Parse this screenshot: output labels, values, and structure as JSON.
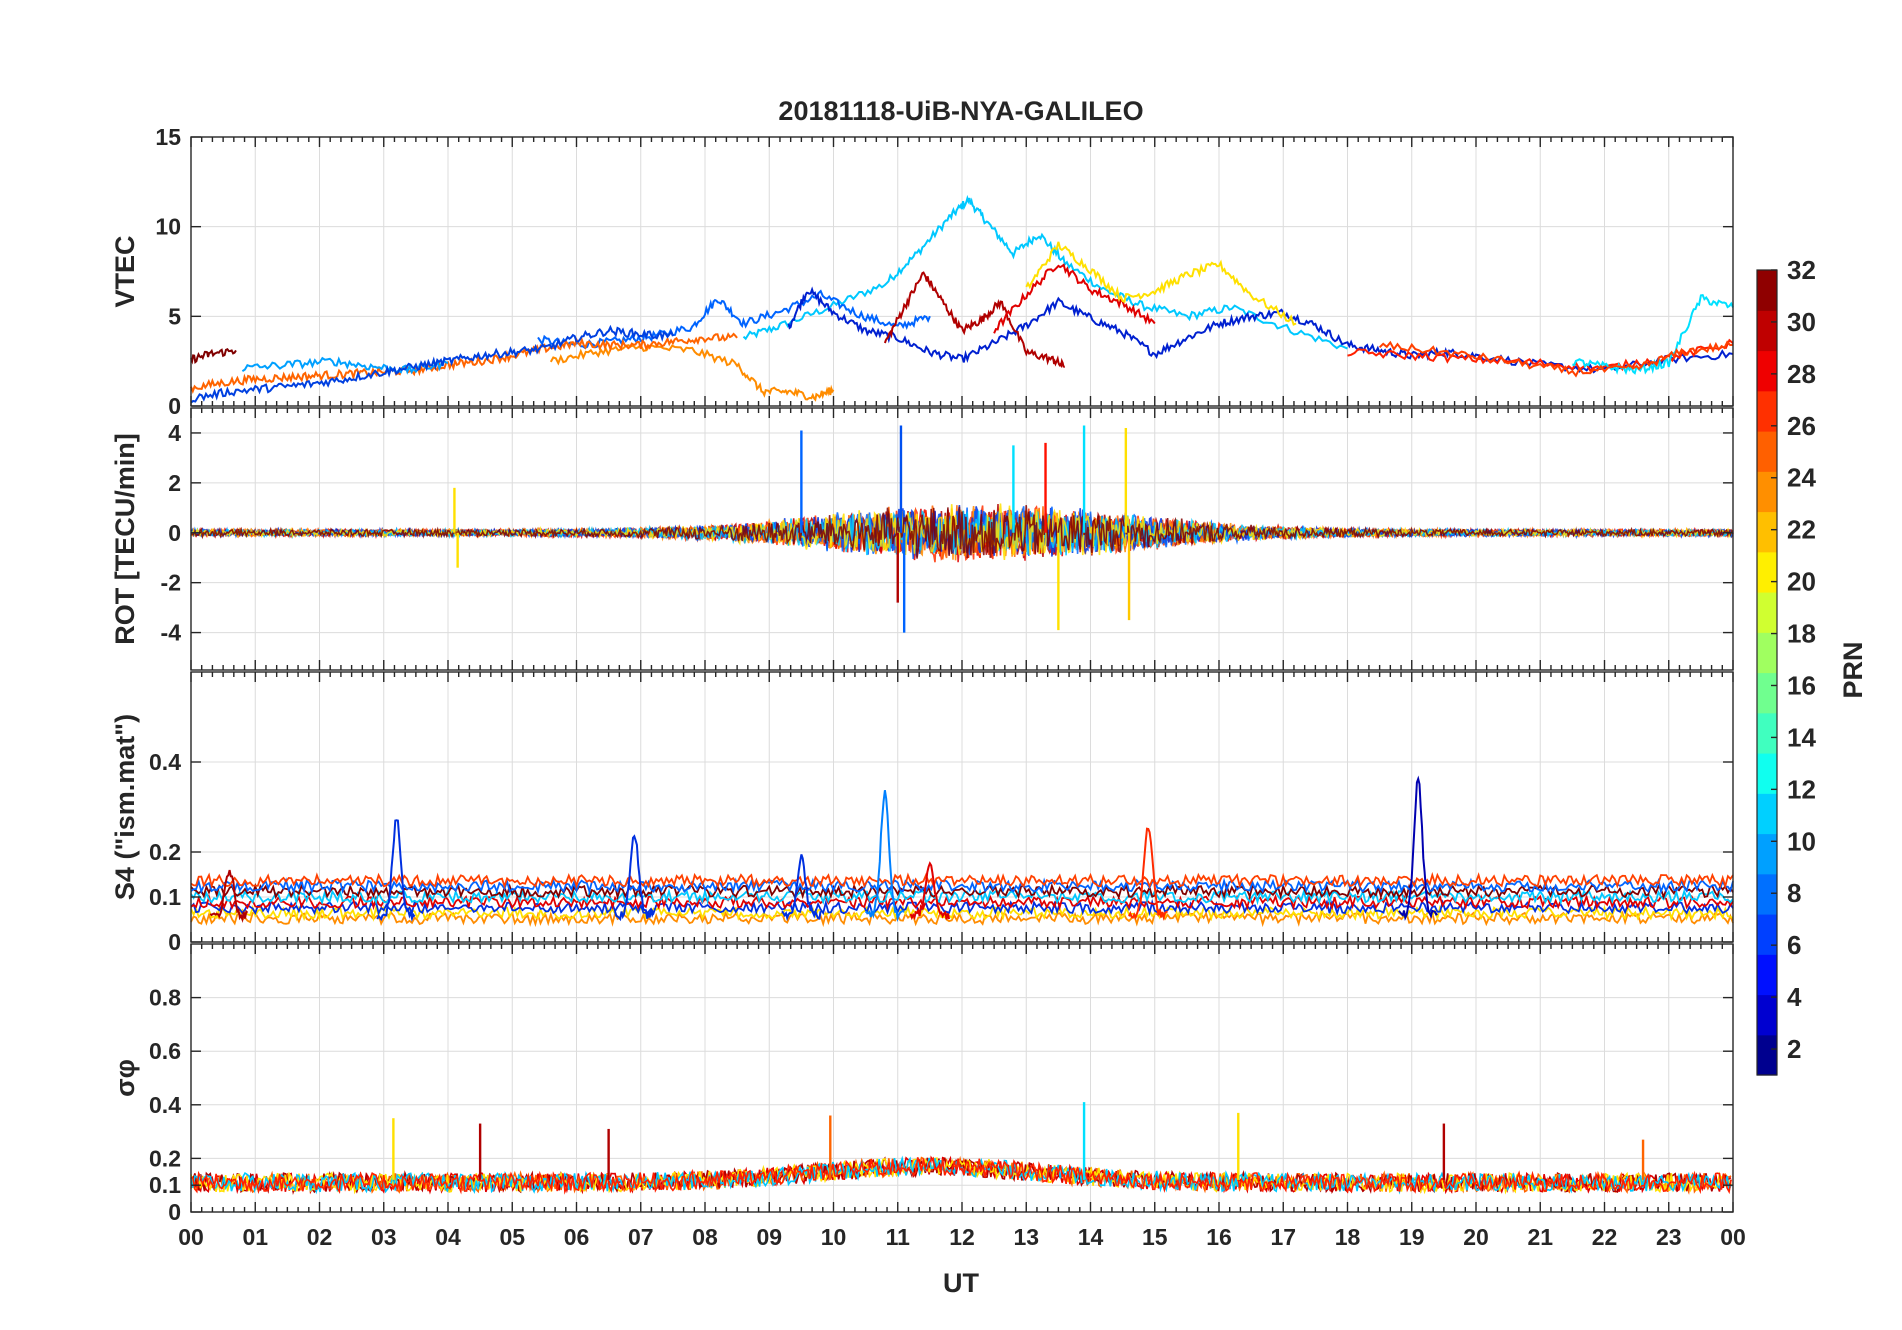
{
  "chart_data": {
    "type": "line",
    "title": "20181118-UiB-NYA-GALILEO",
    "xlabel": "UT",
    "x_ticks": [
      "00",
      "01",
      "02",
      "03",
      "04",
      "05",
      "06",
      "07",
      "08",
      "09",
      "10",
      "11",
      "12",
      "13",
      "14",
      "15",
      "16",
      "17",
      "18",
      "19",
      "20",
      "21",
      "22",
      "23",
      "00"
    ],
    "xlim": [
      0,
      24
    ],
    "colorbar": {
      "label": "PRN",
      "range": [
        1,
        32
      ],
      "ticks": [
        "2",
        "4",
        "6",
        "8",
        "10",
        "12",
        "14",
        "16",
        "18",
        "20",
        "22",
        "24",
        "26",
        "28",
        "30",
        "32"
      ],
      "colormap": "jet"
    },
    "panels": [
      {
        "id": "vtec",
        "ylabel": "VTEC",
        "ylim": [
          0,
          15
        ],
        "yticks": [
          "0",
          "5",
          "10",
          "15"
        ],
        "ytick_values": [
          0,
          5,
          10,
          15
        ],
        "series": [
          {
            "prn": 10,
            "color": "#00c8ff",
            "x": [
              8.6,
              9.2,
              10,
              10.8,
              11.3,
              11.8,
              12.1,
              12.4,
              12.8,
              13.2,
              13.6,
              14.2,
              14.8,
              15.5,
              16.2,
              17,
              18
            ],
            "y": [
              3.8,
              4.5,
              5.6,
              6.8,
              8.5,
              10.5,
              11.5,
              10.2,
              8.5,
              9.6,
              8.0,
              6.5,
              5.6,
              5.0,
              5.5,
              4.4,
              3.2
            ]
          },
          {
            "prn": 7,
            "color": "#0064ff",
            "x": [
              5.4,
              6,
              6.6,
              7.2,
              7.8,
              8.2,
              8.6,
              9.2,
              9.8,
              10.4,
              11,
              11.5
            ],
            "y": [
              3.7,
              3.4,
              3.6,
              3.9,
              4.4,
              6.0,
              4.6,
              5.3,
              6.2,
              5.1,
              4.4,
              5.0
            ]
          },
          {
            "prn": 3,
            "color": "#0020d0",
            "x": [
              9.3,
              9.6,
              10,
              10.5,
              11,
              11.5,
              12,
              12.5,
              13,
              13.5,
              14,
              14.5,
              15,
              15.5,
              16,
              16.5,
              17,
              17.5,
              18,
              18.5,
              19,
              19.5,
              20,
              21,
              22,
              23,
              24
            ],
            "y": [
              4.4,
              6.5,
              5.2,
              4.2,
              3.8,
              3.0,
              2.6,
              3.5,
              4.5,
              5.8,
              4.9,
              4.1,
              2.9,
              3.8,
              4.6,
              5.0,
              5.2,
              4.5,
              3.4,
              3.1,
              2.8,
              3.0,
              2.8,
              2.3,
              2.0,
              2.6,
              2.9
            ]
          },
          {
            "prn": 31,
            "color": "#b00000",
            "x": [
              10.8,
              11.1,
              11.4,
              11.7,
              12,
              12.3,
              12.6,
              13,
              13.4,
              13.6
            ],
            "y": [
              3.5,
              5.5,
              7.4,
              5.8,
              4.2,
              4.8,
              5.8,
              3.0,
              2.6,
              2.2
            ]
          },
          {
            "prn": 30,
            "color": "#e00000",
            "x": [
              12.5,
              13,
              13.5,
              14,
              14.5,
              15
            ],
            "y": [
              4.2,
              6.2,
              8.0,
              6.5,
              5.7,
              4.6
            ]
          },
          {
            "prn": 20,
            "color": "#ffe000",
            "x": [
              13.0,
              13.5,
              14,
              14.5,
              15,
              15.5,
              16,
              16.5,
              17.2
            ],
            "y": [
              6.5,
              9.0,
              7.6,
              6.0,
              6.4,
              7.3,
              7.9,
              6.2,
              4.6
            ]
          },
          {
            "prn": 24,
            "color": "#ff8c00",
            "x": [
              5.6,
              6.3,
              7,
              7.8,
              8.5,
              8.9,
              9.3,
              9.7,
              10
            ],
            "y": [
              2.5,
              3.0,
              3.3,
              3.1,
              2.3,
              0.8,
              0.8,
              0.5,
              0.9
            ]
          },
          {
            "prn": 25,
            "color": "#ff6400",
            "x": [
              0,
              0.5,
              1,
              1.5,
              2,
              2.5,
              3,
              3.5,
              4,
              4.5,
              5,
              5.5,
              6,
              6.5,
              7,
              7.5,
              8,
              8.5
            ],
            "y": [
              1.0,
              1.3,
              1.5,
              1.6,
              1.7,
              1.8,
              1.9,
              2.0,
              2.3,
              2.5,
              2.8,
              3.2,
              3.5,
              3.4,
              3.4,
              3.6,
              3.8,
              3.8
            ]
          },
          {
            "prn": 32,
            "color": "#800000",
            "x": [
              0,
              0.3,
              0.7
            ],
            "y": [
              2.6,
              2.9,
              3.1
            ]
          },
          {
            "prn": 11,
            "color": "#00a0ff",
            "x": [
              0.8,
              1.5,
              2.2,
              2.8,
              3.4,
              4
            ],
            "y": [
              2.1,
              2.3,
              2.5,
              2.2,
              2.0,
              2.4
            ]
          },
          {
            "prn": 4,
            "color": "#0040e0",
            "x": [
              0,
              0.6,
              1.2,
              1.8,
              2.4,
              3,
              3.5,
              4,
              4.5,
              5,
              5.5,
              6,
              6.5,
              7,
              7.5
            ],
            "y": [
              0.4,
              0.8,
              1.0,
              1.2,
              1.5,
              1.9,
              2.2,
              2.5,
              2.8,
              3.0,
              3.2,
              3.8,
              4.2,
              4.0,
              3.9
            ]
          },
          {
            "prn": 28,
            "color": "#ff2000",
            "x": [
              18,
              19,
              20,
              21,
              22,
              23,
              24
            ],
            "y": [
              3.0,
              2.8,
              2.6,
              2.4,
              2.1,
              2.7,
              3.5
            ]
          },
          {
            "prn": 12,
            "color": "#00e0ff",
            "x": [
              21.5,
              22,
              22.5,
              23,
              23.5,
              24
            ],
            "y": [
              2.5,
              2.2,
              2.0,
              2.4,
              6.0,
              5.5
            ]
          },
          {
            "prn": 26,
            "color": "#ff4000",
            "x": [
              18.5,
              19.5,
              20.5,
              21.5,
              22.5,
              23.2,
              24
            ],
            "y": [
              3.4,
              3.0,
              2.5,
              1.9,
              2.1,
              3.0,
              3.4
            ]
          }
        ]
      },
      {
        "id": "rot",
        "ylabel": "ROT [TECU/min]",
        "ylim": [
          -5.5,
          5
        ],
        "yticks": [
          "-4",
          "-2",
          "0",
          "2",
          "4"
        ],
        "ytick_values": [
          -4,
          -2,
          0,
          2,
          4
        ],
        "spikes": [
          {
            "prn": 7,
            "color": "#0064ff",
            "x": 9.5,
            "y": 4.1
          },
          {
            "prn": 6,
            "color": "#0050f0",
            "x": 11.05,
            "y": 4.3
          },
          {
            "prn": 7,
            "color": "#0064ff",
            "x": 11.1,
            "y": -4.0
          },
          {
            "prn": 20,
            "color": "#ffe000",
            "x": 14.55,
            "y": 4.2
          },
          {
            "prn": 22,
            "color": "#ffc800",
            "x": 14.6,
            "y": -3.5
          },
          {
            "prn": 20,
            "color": "#ffe000",
            "x": 13.5,
            "y": -3.9
          },
          {
            "prn": 12,
            "color": "#00e0ff",
            "x": 12.8,
            "y": 3.5
          },
          {
            "prn": 12,
            "color": "#00e0ff",
            "x": 13.9,
            "y": 4.3
          },
          {
            "prn": 29,
            "color": "#ff1000",
            "x": 13.3,
            "y": 3.6
          },
          {
            "prn": 20,
            "color": "#ffe000",
            "x": 4.1,
            "y": 1.8
          },
          {
            "prn": 20,
            "color": "#ffe000",
            "x": 4.15,
            "y": -1.4
          },
          {
            "prn": 31,
            "color": "#b00000",
            "x": 11.0,
            "y": -2.8
          }
        ]
      },
      {
        "id": "s4",
        "ylabel": "S4 (\"ism.mat\")",
        "ylim": [
          0,
          0.6
        ],
        "yticks": [
          "0",
          "0.1",
          "0.2",
          "0.4"
        ],
        "ytick_values": [
          0,
          0.1,
          0.2,
          0.4
        ],
        "peaks": [
          {
            "prn": 31,
            "color": "#b00000",
            "x": 0.6,
            "y": 0.16
          },
          {
            "prn": 5,
            "color": "#0030e0",
            "x": 3.2,
            "y": 0.27
          },
          {
            "prn": 5,
            "color": "#0030e0",
            "x": 6.9,
            "y": 0.24
          },
          {
            "prn": 8,
            "color": "#0080ff",
            "x": 10.8,
            "y": 0.33
          },
          {
            "prn": 27,
            "color": "#ff2a00",
            "x": 14.9,
            "y": 0.26
          },
          {
            "prn": 2,
            "color": "#0000b0",
            "x": 19.1,
            "y": 0.36
          },
          {
            "prn": 5,
            "color": "#0030e0",
            "x": 9.5,
            "y": 0.19
          },
          {
            "prn": 30,
            "color": "#e00000",
            "x": 11.5,
            "y": 0.18
          }
        ]
      },
      {
        "id": "sigma_phi",
        "ylabel": "σφ",
        "ylim": [
          0,
          1
        ],
        "yticks": [
          "0",
          "0.1",
          "0.2",
          "0.4",
          "0.6",
          "0.8"
        ],
        "ytick_values": [
          0,
          0.1,
          0.2,
          0.4,
          0.6,
          0.8
        ],
        "peaks": [
          {
            "prn": 20,
            "color": "#ffe000",
            "x": 3.15,
            "y": 0.35
          },
          {
            "prn": 31,
            "color": "#b00000",
            "x": 4.5,
            "y": 0.33
          },
          {
            "prn": 24,
            "color": "#ff6400",
            "x": 9.95,
            "y": 0.36
          },
          {
            "prn": 12,
            "color": "#00e0ff",
            "x": 13.9,
            "y": 0.41
          },
          {
            "prn": 20,
            "color": "#ffe000",
            "x": 16.3,
            "y": 0.37
          },
          {
            "prn": 31,
            "color": "#b00000",
            "x": 19.5,
            "y": 0.33
          },
          {
            "prn": 24,
            "color": "#ff6400",
            "x": 22.6,
            "y": 0.27
          },
          {
            "prn": 31,
            "color": "#b00000",
            "x": 6.5,
            "y": 0.31
          }
        ]
      }
    ]
  }
}
